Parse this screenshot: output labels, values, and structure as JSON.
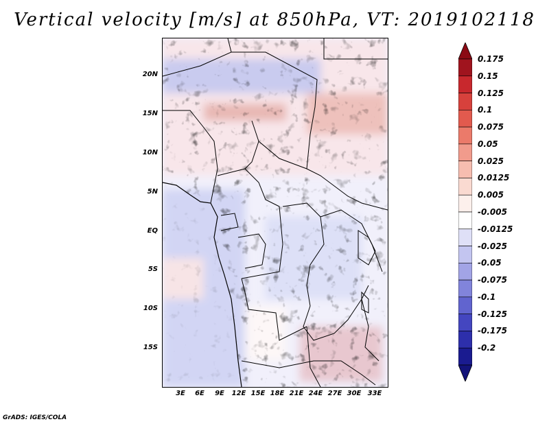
{
  "title": "Vertical velocity [m/s] at 850hPa, VT: 2019102118",
  "footer": "GrADS: IGES/COLA",
  "map": {
    "lat_labels": [
      "20N",
      "15N",
      "10N",
      "5N",
      "EQ",
      "5S",
      "10S",
      "15S"
    ],
    "lon_labels": [
      "3E",
      "6E",
      "9E",
      "12E",
      "15E",
      "18E",
      "21E",
      "24E",
      "27E",
      "30E",
      "33E"
    ]
  },
  "colorbar": {
    "levels": [
      "0.175",
      "0.15",
      "0.125",
      "0.1",
      "0.075",
      "0.05",
      "0.025",
      "0.0125",
      "0.005",
      "-0.005",
      "-0.0125",
      "-0.025",
      "-0.05",
      "-0.075",
      "-0.1",
      "-0.125",
      "-0.175",
      "-0.2"
    ],
    "colors": [
      "#a0141e",
      "#c8282d",
      "#d7413c",
      "#e25a4e",
      "#eb7a6a",
      "#f19b8c",
      "#f6bdb0",
      "#fadad1",
      "#fdf0ec",
      "#ffffff",
      "#dfe0f7",
      "#c3c5f0",
      "#a2a4e6",
      "#8184db",
      "#6164cf",
      "#4446c0",
      "#2d2fab",
      "#1a1b90"
    ],
    "top_arrow": "#8b0a14",
    "bottom_arrow": "#13137a"
  }
}
